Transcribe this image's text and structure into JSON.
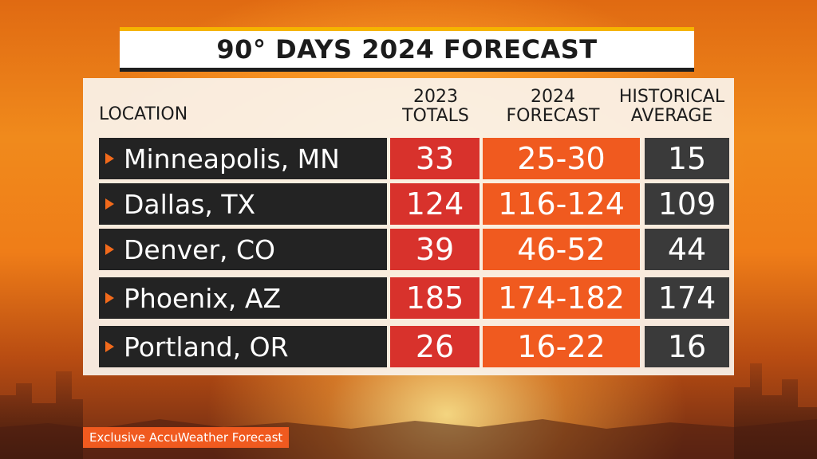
{
  "title": "90° DAYS 2024 FORECAST",
  "headers": {
    "location": "LOCATION",
    "col_2023": [
      "2023",
      "TOTALS"
    ],
    "col_2024": [
      "2024",
      "FORECAST"
    ],
    "col_hist": [
      "HISTORICAL",
      "AVERAGE"
    ]
  },
  "rows": [
    {
      "location": "Minneapolis, MN",
      "totals_2023": "33",
      "forecast_2024": "25-30",
      "historical_average": "15"
    },
    {
      "location": "Dallas, TX",
      "totals_2023": "124",
      "forecast_2024": "116-124",
      "historical_average": "109"
    },
    {
      "location": "Denver, CO",
      "totals_2023": "39",
      "forecast_2024": "46-52",
      "historical_average": "44"
    },
    {
      "location": "Phoenix, AZ",
      "totals_2023": "185",
      "forecast_2024": "174-182",
      "historical_average": "174"
    },
    {
      "location": "Portland, OR",
      "totals_2023": "26",
      "forecast_2024": "16-22",
      "historical_average": "16"
    }
  ],
  "source_tag": "Exclusive AccuWeather Forecast",
  "colors": {
    "title_accent": "#f5b400",
    "location_cell": "#232323",
    "col_2023": "#d8322c",
    "col_2024": "#f05a1f",
    "col_hist": "#3a3a3a",
    "arrow": "#f26a1b"
  },
  "icons": {
    "row_marker": "triangle-right-icon"
  }
}
